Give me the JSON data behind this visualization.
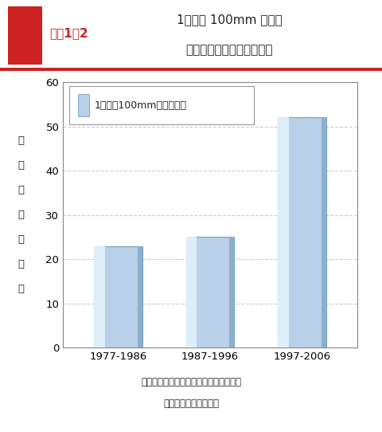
{
  "categories": [
    "1977-1986",
    "1987-1996",
    "1997-2006"
  ],
  "values": [
    23,
    25,
    52
  ],
  "bar_color_base": "#b8d0e8",
  "bar_color_highlight": "#ddeef8",
  "bar_color_shade": "#8ab0cc",
  "bar_edge_color": "#7aa0c0",
  "ylim": [
    0,
    60
  ],
  "yticks": [
    0,
    10,
    20,
    30,
    40,
    50,
    60
  ],
  "title_label": "図表1－2",
  "title_main_line1": "1時間に 100mm 以上の",
  "title_main_line2": "雨が観測された回数の推移",
  "ylabel_line": "観測回数（回）",
  "legend_text": "1時間に100mm以上の降雨",
  "source_text1": "資料：気象庁データを用いて内閣府作成",
  "source_text2": "（協力　国土交通省）",
  "label_color": "#cc2222",
  "title_color": "#222222",
  "grid_color": "#cccccc",
  "header_red": "#cc2222"
}
